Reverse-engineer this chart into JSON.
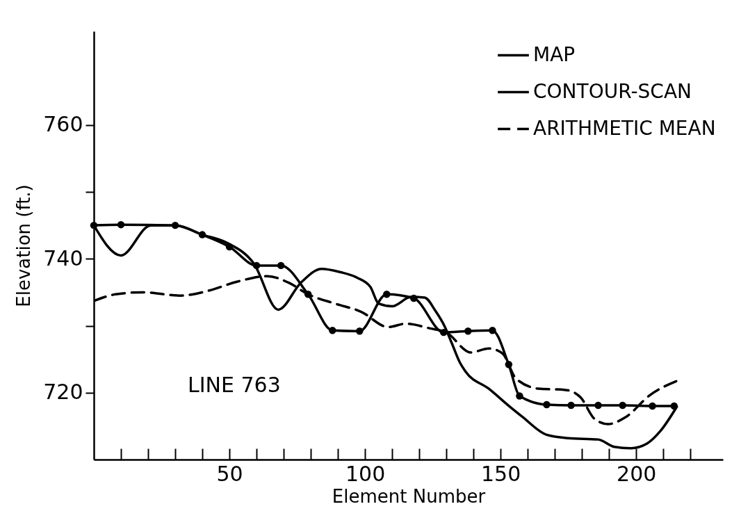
{
  "chart_data": {
    "type": "line",
    "xlabel": "Element Number",
    "ylabel": "Elevation (ft.)",
    "annotations": [
      "LINE 763"
    ],
    "xlim": [
      0,
      232
    ],
    "ylim": [
      710,
      774
    ],
    "xticks": [
      {
        "value": 10,
        "label": null
      },
      {
        "value": 20,
        "label": null
      },
      {
        "value": 30,
        "label": null
      },
      {
        "value": 40,
        "label": null
      },
      50,
      {
        "value": 60,
        "label": null
      },
      {
        "value": 70,
        "label": null
      },
      {
        "value": 80,
        "label": null
      },
      {
        "value": 90,
        "label": null
      },
      100,
      {
        "value": 110,
        "label": null
      },
      {
        "value": 120,
        "label": null
      },
      {
        "value": 130,
        "label": null
      },
      {
        "value": 140,
        "label": null
      },
      150,
      {
        "value": 160,
        "label": null
      },
      {
        "value": 170,
        "label": null
      },
      {
        "value": 180,
        "label": null
      },
      {
        "value": 190,
        "label": null
      },
      200,
      {
        "value": 210,
        "label": null
      },
      {
        "value": 220,
        "label": null
      }
    ],
    "yticks": [
      720,
      {
        "value": 730,
        "label": null
      },
      740,
      {
        "value": 750,
        "label": null
      },
      760
    ],
    "grid": false,
    "legend": "top right",
    "series": [
      {
        "name": "MAP",
        "color": "#000000",
        "line_style": "solid",
        "marker": "none",
        "x": [
          0,
          10,
          21,
          30,
          40,
          49,
          59,
          68,
          76.5,
          84,
          91,
          97,
          102,
          105,
          110,
          117,
          122,
          126,
          129.5,
          132,
          135,
          137,
          145.6,
          154,
          158,
          167,
          175,
          186,
          192,
          198,
          204,
          209,
          215
        ],
        "values": [
          745,
          740.5,
          745,
          745,
          743.6,
          742.4,
          739.3,
          732.4,
          736.5,
          738.5,
          738,
          737.2,
          735.8,
          733.3,
          732.9,
          734.3,
          734.2,
          732.2,
          729.8,
          727.4,
          724.5,
          723.2,
          720.6,
          717.7,
          716.4,
          713.7,
          713.2,
          713,
          711.9,
          711.7,
          712.4,
          714.3,
          717.9
        ]
      },
      {
        "name": "CONTOUR-SCAN",
        "color": "#000000",
        "line_style": "solid",
        "marker": "circle",
        "x": [
          0,
          10,
          30,
          40,
          50,
          60,
          69,
          79,
          88,
          98,
          108,
          118,
          129,
          138,
          147,
          153,
          157,
          167,
          176,
          186,
          195,
          206,
          214
        ],
        "values": [
          745,
          745.1,
          745,
          743.6,
          741.8,
          739,
          739,
          734.7,
          729.3,
          729.2,
          734.7,
          734.1,
          729,
          729.2,
          729.3,
          724.2,
          719.5,
          718.2,
          718.1,
          718.1,
          718.1,
          718,
          718
        ]
      },
      {
        "name": "ARITHMETIC MEAN",
        "color": "#000000",
        "line_style": "dashed",
        "marker": "none",
        "x": [
          0,
          8,
          18,
          32,
          42,
          53,
          64,
          72,
          79,
          89,
          98.5,
          108.6,
          115,
          124,
          130,
          139,
          145.6,
          150.6,
          155.7,
          164,
          174,
          179.5,
          184.6,
          189.6,
          196,
          205,
          216.5
        ],
        "values": [
          733.7,
          734.7,
          735,
          734.5,
          735.2,
          736.6,
          737.4,
          736.4,
          734.7,
          733.3,
          732.1,
          729.8,
          730.3,
          729.6,
          729,
          726,
          726.6,
          725.9,
          722.1,
          720.6,
          720.4,
          719.3,
          716.1,
          715.3,
          716.3,
          719.6,
          722
        ]
      }
    ]
  }
}
